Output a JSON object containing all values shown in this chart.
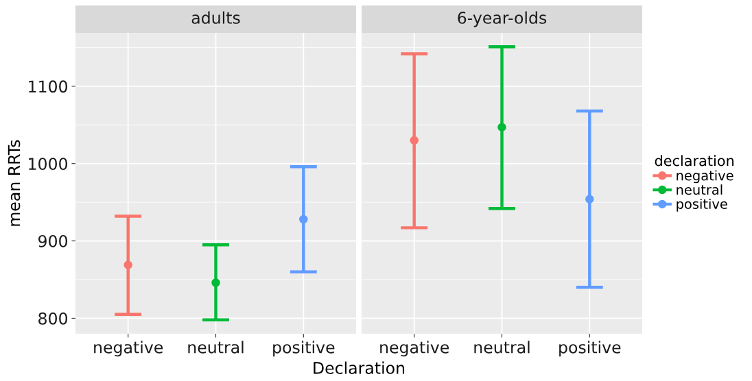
{
  "chart_data": [
    {
      "type": "scatter",
      "title": "adults",
      "xlabel": "Declaration",
      "ylabel": "mean RRTs",
      "categories": [
        "negative",
        "neutral",
        "positive"
      ],
      "ylim": [
        780,
        1169
      ],
      "yticks": [
        800,
        900,
        1000,
        1100
      ],
      "grid": true,
      "marker": "circle",
      "series": [
        {
          "color": "#f8766d",
          "values": [
            869,
            null,
            null
          ],
          "errors": [
            [
              805,
              932
            ],
            null,
            null
          ]
        },
        {
          "color": "#00ba38",
          "values": [
            null,
            846,
            null
          ],
          "errors": [
            null,
            [
              798,
              895
            ],
            null
          ]
        },
        {
          "color": "#619cff",
          "values": [
            null,
            null,
            928
          ],
          "errors": [
            null,
            null,
            [
              860,
              996
            ]
          ]
        }
      ]
    },
    {
      "type": "scatter",
      "title": "6-year-olds",
      "categories": [
        "negative",
        "neutral",
        "positive"
      ],
      "ylim": [
        780,
        1169
      ],
      "yticks": [
        800,
        900,
        1000,
        1100
      ],
      "tick_labels": "x",
      "grid": true,
      "legend": "right",
      "legend_title": "declaration",
      "marker": "circle",
      "series": [
        {
          "name": "negative",
          "color": "#f8766d",
          "values": [
            1030,
            null,
            null
          ],
          "errors": [
            [
              917,
              1142
            ],
            null,
            null
          ]
        },
        {
          "name": "neutral",
          "color": "#00ba38",
          "values": [
            null,
            1047,
            null
          ],
          "errors": [
            null,
            [
              942,
              1151
            ],
            null
          ]
        },
        {
          "name": "positive",
          "color": "#619cff",
          "values": [
            null,
            null,
            954
          ],
          "errors": [
            null,
            null,
            [
              840,
              1068
            ]
          ]
        }
      ]
    }
  ]
}
